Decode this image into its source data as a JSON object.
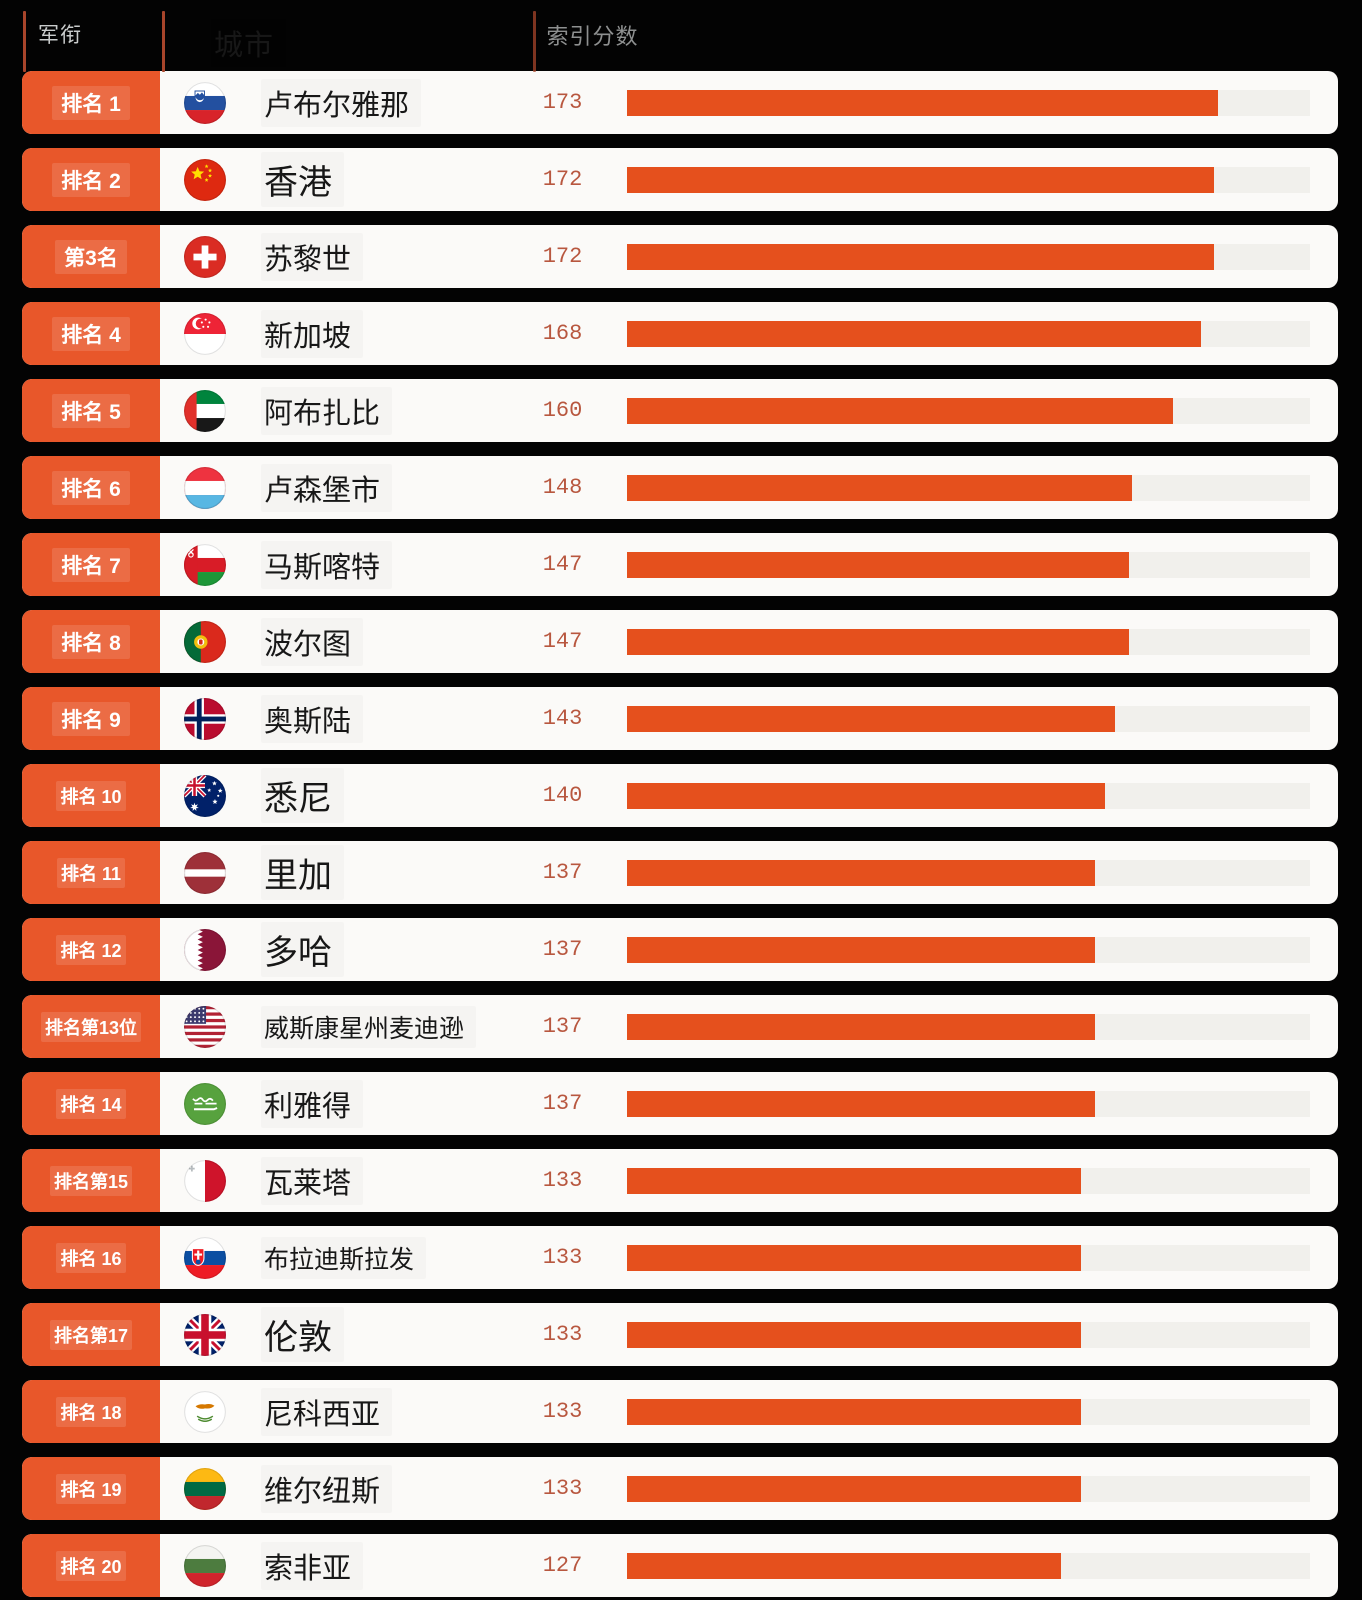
{
  "header": {
    "rank": "军衔",
    "city": "城市",
    "score": "索引分数"
  },
  "colors": {
    "page_bg": "#030303",
    "card_bg": "#fbfaf8",
    "badge": "#e8572a",
    "bar": "#e5501d",
    "bar_track": "#f1f0ec",
    "score_text": "#b8573f",
    "header_text": "#c9cccc",
    "header_text_dim": "#8e9090",
    "separator": "#a8452b"
  },
  "chart_data": {
    "type": "bar",
    "orientation": "horizontal",
    "xlim": [
      0,
      200
    ],
    "column_headers": [
      "军衔",
      "城市",
      "索引分数"
    ],
    "rows": [
      {
        "rank_label": "排名 1",
        "city": "卢布尔雅那",
        "country": "slovenia",
        "flag": "si",
        "score": 173
      },
      {
        "rank_label": "排名 2",
        "city": "香港",
        "country": "china",
        "flag": "cn",
        "score": 172
      },
      {
        "rank_label": "第3名",
        "city": "苏黎世",
        "country": "switzerland",
        "flag": "ch",
        "score": 172
      },
      {
        "rank_label": "排名 4",
        "city": "新加坡",
        "country": "singapore",
        "flag": "sg",
        "score": 168
      },
      {
        "rank_label": "排名 5",
        "city": "阿布扎比",
        "country": "uae",
        "flag": "ae",
        "score": 160
      },
      {
        "rank_label": "排名 6",
        "city": "卢森堡市",
        "country": "luxembourg",
        "flag": "lu",
        "score": 148
      },
      {
        "rank_label": "排名 7",
        "city": "马斯喀特",
        "country": "oman",
        "flag": "om",
        "score": 147
      },
      {
        "rank_label": "排名 8",
        "city": "波尔图",
        "country": "portugal",
        "flag": "pt",
        "score": 147
      },
      {
        "rank_label": "排名 9",
        "city": "奥斯陆",
        "country": "norway",
        "flag": "no",
        "score": 143
      },
      {
        "rank_label": "排名 10",
        "city": "悉尼",
        "country": "australia",
        "flag": "au",
        "score": 140
      },
      {
        "rank_label": "排名 11",
        "city": "里加",
        "country": "latvia",
        "flag": "lv",
        "score": 137
      },
      {
        "rank_label": "排名 12",
        "city": "多哈",
        "country": "qatar",
        "flag": "qa",
        "score": 137
      },
      {
        "rank_label": "排名第13位",
        "city": "威斯康星州麦迪逊",
        "country": "usa",
        "flag": "us",
        "score": 137
      },
      {
        "rank_label": "排名 14",
        "city": "利雅得",
        "country": "saudi-arabia",
        "flag": "sa",
        "score": 137
      },
      {
        "rank_label": "排名第15",
        "city": "瓦莱塔",
        "country": "malta",
        "flag": "mt",
        "score": 133
      },
      {
        "rank_label": "排名 16",
        "city": "布拉迪斯拉发",
        "country": "slovakia",
        "flag": "sk",
        "score": 133
      },
      {
        "rank_label": "排名第17",
        "city": "伦敦",
        "country": "uk",
        "flag": "gb",
        "score": 133
      },
      {
        "rank_label": "排名 18",
        "city": "尼科西亚",
        "country": "cyprus",
        "flag": "cy",
        "score": 133
      },
      {
        "rank_label": "排名 19",
        "city": "维尔纽斯",
        "country": "lithuania",
        "flag": "lt",
        "score": 133
      },
      {
        "rank_label": "排名 20",
        "city": "索非亚",
        "country": "bulgaria",
        "flag": "bg",
        "score": 127
      }
    ]
  }
}
